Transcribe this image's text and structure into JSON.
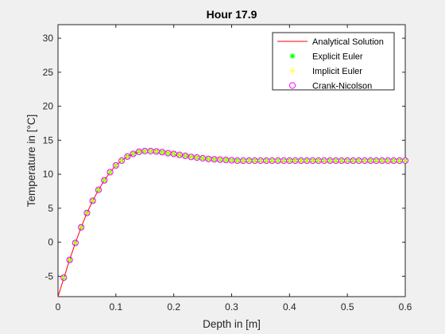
{
  "chart_data": {
    "type": "line",
    "title": "Hour 17.9",
    "xlabel": "Depth in [m]",
    "ylabel": "Temperature in [°C]",
    "xlim": [
      0,
      0.6
    ],
    "ylim": [
      -8,
      32
    ],
    "xticks": [
      0,
      0.1,
      0.2,
      0.3,
      0.4,
      0.5,
      0.6
    ],
    "xtick_labels": [
      "0",
      "0.1",
      "0.2",
      "0.3",
      "0.4",
      "0.5",
      "0.6"
    ],
    "yticks": [
      -5,
      0,
      5,
      10,
      15,
      20,
      25,
      30
    ],
    "ytick_labels": [
      "-5",
      "0",
      "5",
      "10",
      "15",
      "20",
      "25",
      "30"
    ],
    "grid": false,
    "legend_position": "top-right",
    "series": [
      {
        "name": "Analytical Solution",
        "style": "line",
        "color": "#ff0000",
        "x": [
          0,
          0.01,
          0.02,
          0.03,
          0.04,
          0.05,
          0.06,
          0.07,
          0.08,
          0.09,
          0.1,
          0.11,
          0.12,
          0.13,
          0.14,
          0.15,
          0.16,
          0.17,
          0.18,
          0.19,
          0.2,
          0.21,
          0.22,
          0.23,
          0.24,
          0.25,
          0.26,
          0.27,
          0.28,
          0.29,
          0.3,
          0.32,
          0.34,
          0.36,
          0.38,
          0.4,
          0.45,
          0.5,
          0.55,
          0.6
        ],
        "y": [
          -8.0,
          -5.3,
          -2.6,
          -0.1,
          2.2,
          4.3,
          6.1,
          7.7,
          9.1,
          10.3,
          11.3,
          12.0,
          12.6,
          13.0,
          13.3,
          13.4,
          13.4,
          13.35,
          13.25,
          13.1,
          13.0,
          12.85,
          12.7,
          12.55,
          12.45,
          12.35,
          12.25,
          12.2,
          12.15,
          12.1,
          12.05,
          12.0,
          12.0,
          12.0,
          12.0,
          12.0,
          12.0,
          12.0,
          12.0,
          12.0
        ]
      },
      {
        "name": "Explicit Euler",
        "style": "markers",
        "marker": "star",
        "color": "#00ff00",
        "x": [
          0.01,
          0.02,
          0.03,
          0.04,
          0.05,
          0.06,
          0.07,
          0.08,
          0.09,
          0.1,
          0.11,
          0.12,
          0.13,
          0.14,
          0.15,
          0.16,
          0.17,
          0.18,
          0.19,
          0.2,
          0.21,
          0.22,
          0.23,
          0.24,
          0.25,
          0.26,
          0.27,
          0.28,
          0.29,
          0.3,
          0.31,
          0.32,
          0.33,
          0.34,
          0.35,
          0.36,
          0.37,
          0.38,
          0.39,
          0.4,
          0.41,
          0.42,
          0.43,
          0.44,
          0.45,
          0.46,
          0.47,
          0.48,
          0.49,
          0.5,
          0.51,
          0.52,
          0.53,
          0.54,
          0.55,
          0.56,
          0.57,
          0.58,
          0.59,
          0.6
        ],
        "y": [
          -5.2,
          -2.6,
          -0.1,
          2.2,
          4.3,
          6.1,
          7.7,
          9.1,
          10.3,
          11.3,
          12.0,
          12.6,
          13.0,
          13.3,
          13.4,
          13.4,
          13.35,
          13.25,
          13.1,
          13.0,
          12.85,
          12.7,
          12.55,
          12.45,
          12.35,
          12.25,
          12.2,
          12.15,
          12.1,
          12.05,
          12.0,
          12.0,
          12.0,
          12.0,
          12.0,
          12.0,
          12.0,
          12.0,
          12.0,
          12.0,
          12.0,
          12.0,
          12.0,
          12.0,
          12.0,
          12.0,
          12.0,
          12.0,
          12.0,
          12.0,
          12.0,
          12.0,
          12.0,
          12.0,
          12.0,
          12.0,
          12.0,
          12.0,
          12.0,
          12.0
        ]
      },
      {
        "name": "Implicit Euler",
        "style": "markers",
        "marker": "plus",
        "color": "#ffff00",
        "x": [
          0.01,
          0.02,
          0.03,
          0.04,
          0.05,
          0.06,
          0.07,
          0.08,
          0.09,
          0.1,
          0.11,
          0.12,
          0.13,
          0.14,
          0.15,
          0.16,
          0.17,
          0.18,
          0.19,
          0.2,
          0.21,
          0.22,
          0.23,
          0.24,
          0.25,
          0.26,
          0.27,
          0.28,
          0.29,
          0.3,
          0.31,
          0.32,
          0.33,
          0.34,
          0.35,
          0.36,
          0.37,
          0.38,
          0.39,
          0.4,
          0.41,
          0.42,
          0.43,
          0.44,
          0.45,
          0.46,
          0.47,
          0.48,
          0.49,
          0.5,
          0.51,
          0.52,
          0.53,
          0.54,
          0.55,
          0.56,
          0.57,
          0.58,
          0.59,
          0.6
        ],
        "y": [
          -5.2,
          -2.6,
          -0.1,
          2.2,
          4.3,
          6.1,
          7.7,
          9.1,
          10.3,
          11.3,
          12.0,
          12.6,
          13.0,
          13.3,
          13.4,
          13.4,
          13.35,
          13.25,
          13.1,
          13.0,
          12.85,
          12.7,
          12.55,
          12.45,
          12.35,
          12.25,
          12.2,
          12.15,
          12.1,
          12.05,
          12.0,
          12.0,
          12.0,
          12.0,
          12.0,
          12.0,
          12.0,
          12.0,
          12.0,
          12.0,
          12.0,
          12.0,
          12.0,
          12.0,
          12.0,
          12.0,
          12.0,
          12.0,
          12.0,
          12.0,
          12.0,
          12.0,
          12.0,
          12.0,
          12.0,
          12.0,
          12.0,
          12.0,
          12.0,
          12.0
        ]
      },
      {
        "name": "Crank-Nicolson",
        "style": "markers",
        "marker": "circle",
        "color": "#ff00ff",
        "x": [
          0.01,
          0.02,
          0.03,
          0.04,
          0.05,
          0.06,
          0.07,
          0.08,
          0.09,
          0.1,
          0.11,
          0.12,
          0.13,
          0.14,
          0.15,
          0.16,
          0.17,
          0.18,
          0.19,
          0.2,
          0.21,
          0.22,
          0.23,
          0.24,
          0.25,
          0.26,
          0.27,
          0.28,
          0.29,
          0.3,
          0.31,
          0.32,
          0.33,
          0.34,
          0.35,
          0.36,
          0.37,
          0.38,
          0.39,
          0.4,
          0.41,
          0.42,
          0.43,
          0.44,
          0.45,
          0.46,
          0.47,
          0.48,
          0.49,
          0.5,
          0.51,
          0.52,
          0.53,
          0.54,
          0.55,
          0.56,
          0.57,
          0.58,
          0.59,
          0.6
        ],
        "y": [
          -5.2,
          -2.6,
          -0.1,
          2.2,
          4.3,
          6.1,
          7.7,
          9.1,
          10.3,
          11.3,
          12.0,
          12.6,
          13.0,
          13.3,
          13.4,
          13.4,
          13.35,
          13.25,
          13.1,
          13.0,
          12.85,
          12.7,
          12.55,
          12.45,
          12.35,
          12.25,
          12.2,
          12.15,
          12.1,
          12.05,
          12.0,
          12.0,
          12.0,
          12.0,
          12.0,
          12.0,
          12.0,
          12.0,
          12.0,
          12.0,
          12.0,
          12.0,
          12.0,
          12.0,
          12.0,
          12.0,
          12.0,
          12.0,
          12.0,
          12.0,
          12.0,
          12.0,
          12.0,
          12.0,
          12.0,
          12.0,
          12.0,
          12.0,
          12.0,
          12.0
        ]
      }
    ]
  }
}
